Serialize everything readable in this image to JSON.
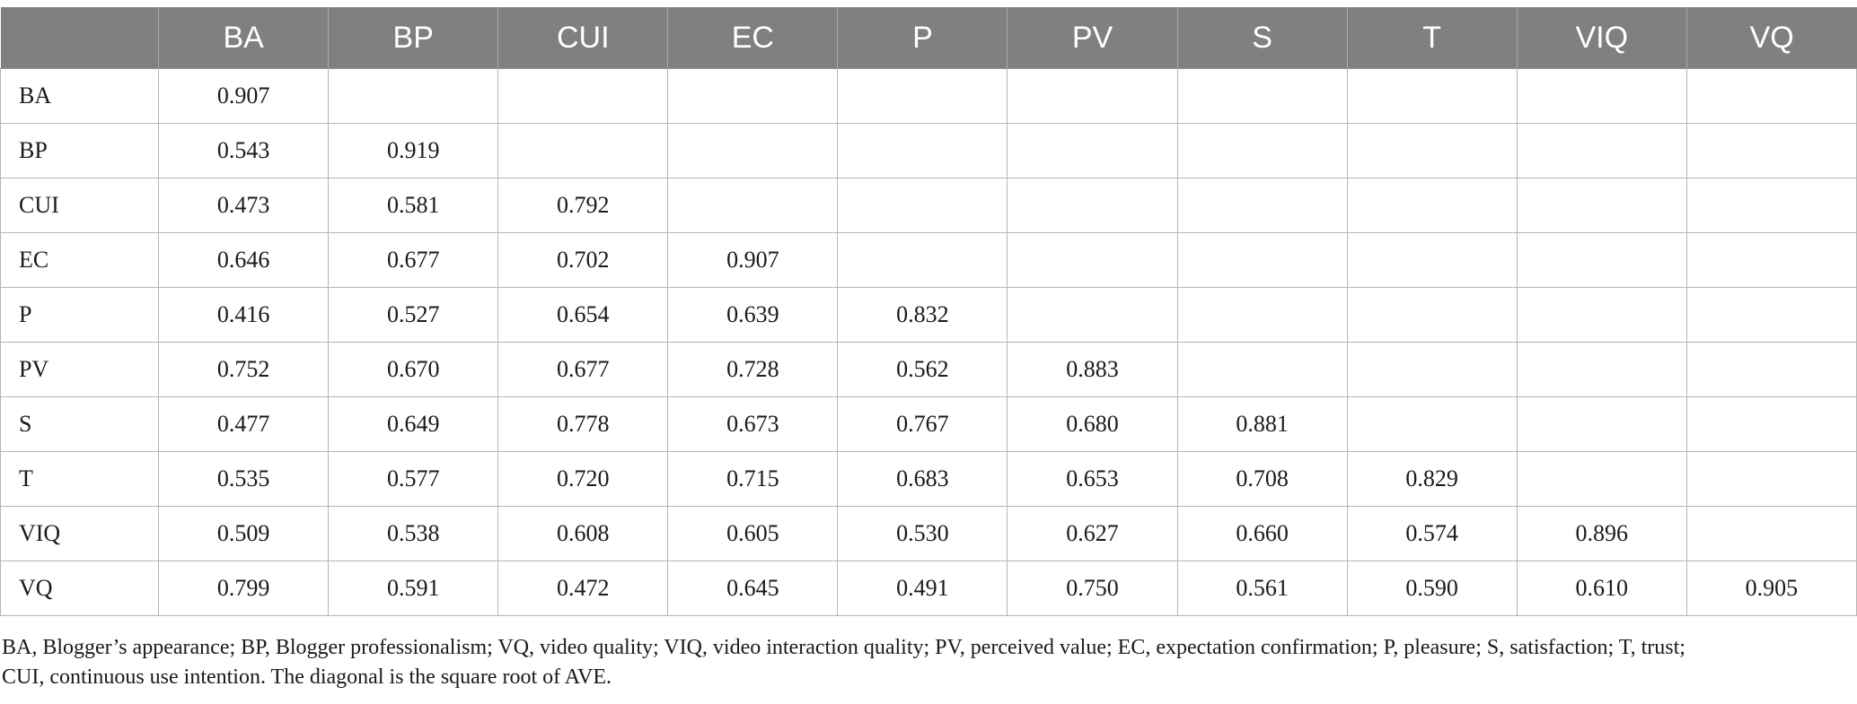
{
  "table": {
    "columns": [
      "",
      "BA",
      "BP",
      "CUI",
      "EC",
      "P",
      "PV",
      "S",
      "T",
      "VIQ",
      "VQ"
    ],
    "rows": [
      [
        "BA",
        "0.907",
        "",
        "",
        "",
        "",
        "",
        "",
        "",
        "",
        ""
      ],
      [
        "BP",
        "0.543",
        "0.919",
        "",
        "",
        "",
        "",
        "",
        "",
        "",
        ""
      ],
      [
        "CUI",
        "0.473",
        "0.581",
        "0.792",
        "",
        "",
        "",
        "",
        "",
        "",
        ""
      ],
      [
        "EC",
        "0.646",
        "0.677",
        "0.702",
        "0.907",
        "",
        "",
        "",
        "",
        "",
        ""
      ],
      [
        "P",
        "0.416",
        "0.527",
        "0.654",
        "0.639",
        "0.832",
        "",
        "",
        "",
        "",
        ""
      ],
      [
        "PV",
        "0.752",
        "0.670",
        "0.677",
        "0.728",
        "0.562",
        "0.883",
        "",
        "",
        "",
        ""
      ],
      [
        "S",
        "0.477",
        "0.649",
        "0.778",
        "0.673",
        "0.767",
        "0.680",
        "0.881",
        "",
        "",
        ""
      ],
      [
        "T",
        "0.535",
        "0.577",
        "0.720",
        "0.715",
        "0.683",
        "0.653",
        "0.708",
        "0.829",
        "",
        ""
      ],
      [
        "VIQ",
        "0.509",
        "0.538",
        "0.608",
        "0.605",
        "0.530",
        "0.627",
        "0.660",
        "0.574",
        "0.896",
        ""
      ],
      [
        "VQ",
        "0.799",
        "0.591",
        "0.472",
        "0.645",
        "0.491",
        "0.750",
        "0.561",
        "0.590",
        "0.610",
        "0.905"
      ]
    ]
  },
  "footnote": {
    "line1": "BA, Blogger’s appearance; BP, Blogger professionalism; VQ, video quality; VIQ, video interaction quality; PV, perceived value; EC, expectation confirmation; P, pleasure; S, satisfaction; T, trust;",
    "line2": "CUI, continuous use intention. The diagonal is the square root of AVE."
  },
  "colors": {
    "header_bg": "#808080",
    "header_text": "#ffffff",
    "grid": "#b5b5b5"
  }
}
